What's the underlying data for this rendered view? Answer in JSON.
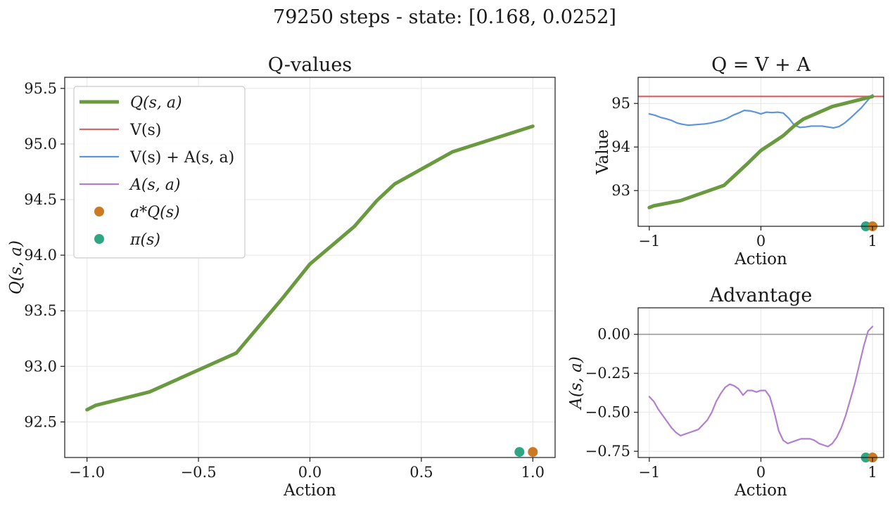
{
  "suptitle": "79250 steps - state: [0.168, 0.0252]",
  "colors": {
    "q": "#6a9a3f",
    "v": "#d06b6b",
    "vpa": "#5b95dd",
    "adv": "#b27fd1",
    "a_star": "#cc7a22",
    "pi": "#2fa683",
    "zero_line": "#9a9a9a"
  },
  "legend": {
    "placement": "upper-left",
    "items": [
      {
        "key": "q",
        "kind": "thick-line",
        "label": "Q(s, a)"
      },
      {
        "key": "v",
        "kind": "line",
        "label": "V(s)"
      },
      {
        "key": "vpa",
        "kind": "line",
        "label": "V(s) + A(s, a)"
      },
      {
        "key": "adv",
        "kind": "line",
        "label": "A(s, a)"
      },
      {
        "key": "a_star",
        "kind": "dot",
        "label": "a*Q(s)"
      },
      {
        "key": "pi",
        "kind": "dot",
        "label": "π(s)"
      }
    ]
  },
  "chart_data": [
    {
      "id": "qvalues",
      "type": "line",
      "title": "Q-values",
      "xlabel": "Action",
      "ylabel": "Q(s, a)",
      "xlim": [
        -1.1,
        1.1
      ],
      "ylim": [
        92.18,
        95.6
      ],
      "xticks": [
        -1.0,
        -0.5,
        0.0,
        0.5,
        1.0
      ],
      "xtick_labels": [
        "−1.0",
        "−0.5",
        "0.0",
        "0.5",
        "1.0"
      ],
      "yticks": [
        92.5,
        93.0,
        93.5,
        94.0,
        94.5,
        95.0,
        95.5
      ],
      "ytick_labels": [
        "92.5",
        "93.0",
        "93.5",
        "94.0",
        "94.5",
        "95.0",
        "95.5"
      ],
      "grid": true,
      "series": [
        {
          "key": "q",
          "x": [
            -1.0,
            -0.96,
            -0.72,
            -0.33,
            -0.12,
            0.0,
            0.13,
            0.2,
            0.3,
            0.38,
            0.64,
            1.0
          ],
          "y": [
            92.61,
            92.65,
            92.77,
            93.12,
            93.62,
            93.92,
            94.14,
            94.26,
            94.49,
            94.64,
            94.93,
            95.16
          ]
        }
      ],
      "markers": [
        {
          "key": "pi",
          "x": 0.94,
          "y": 92.23
        },
        {
          "key": "a_star",
          "x": 1.0,
          "y": 92.23
        }
      ]
    },
    {
      "id": "q_v_a",
      "type": "line",
      "title": "Q = V + A",
      "xlabel": "Action",
      "ylabel": "Value",
      "xlim": [
        -1.1,
        1.1
      ],
      "ylim": [
        92.18,
        95.6
      ],
      "xticks": [
        -1,
        0,
        1
      ],
      "xtick_labels": [
        "−1",
        "0",
        "1"
      ],
      "yticks": [
        93,
        94,
        95
      ],
      "ytick_labels": [
        "93",
        "94",
        "95"
      ],
      "grid": true,
      "hline": {
        "key": "v",
        "y": 95.16
      },
      "series": [
        {
          "key": "vpa",
          "x": [
            -1.0,
            -0.95,
            -0.9,
            -0.85,
            -0.8,
            -0.75,
            -0.7,
            -0.65,
            -0.6,
            -0.55,
            -0.5,
            -0.45,
            -0.4,
            -0.35,
            -0.3,
            -0.25,
            -0.2,
            -0.15,
            -0.1,
            -0.05,
            0.0,
            0.05,
            0.1,
            0.15,
            0.2,
            0.25,
            0.3,
            0.35,
            0.4,
            0.45,
            0.5,
            0.55,
            0.6,
            0.65,
            0.7,
            0.75,
            0.8,
            0.85,
            0.9,
            0.95,
            1.0
          ],
          "y": [
            94.76,
            94.73,
            94.68,
            94.65,
            94.61,
            94.55,
            94.52,
            94.5,
            94.51,
            94.52,
            94.53,
            94.55,
            94.58,
            94.61,
            94.66,
            94.73,
            94.78,
            94.84,
            94.83,
            94.8,
            94.76,
            94.8,
            94.79,
            94.8,
            94.78,
            94.66,
            94.5,
            94.45,
            94.46,
            94.48,
            94.48,
            94.48,
            94.46,
            94.44,
            94.47,
            94.55,
            94.66,
            94.78,
            94.9,
            95.05,
            95.2
          ]
        },
        {
          "key": "q",
          "x": [
            -1.0,
            -0.96,
            -0.72,
            -0.33,
            -0.12,
            0.0,
            0.13,
            0.2,
            0.3,
            0.38,
            0.64,
            1.0
          ],
          "y": [
            92.61,
            92.65,
            92.77,
            93.12,
            93.62,
            93.92,
            94.14,
            94.26,
            94.49,
            94.64,
            94.93,
            95.16
          ]
        }
      ],
      "markers": [
        {
          "key": "pi",
          "x": 0.94,
          "y": 92.18
        },
        {
          "key": "a_star",
          "x": 1.0,
          "y": 92.18
        }
      ]
    },
    {
      "id": "advantage",
      "type": "line",
      "title": "Advantage",
      "xlabel": "Action",
      "ylabel": "A(s, a)",
      "xlim": [
        -1.1,
        1.1
      ],
      "ylim": [
        -0.79,
        0.17
      ],
      "xticks": [
        -1,
        0,
        1
      ],
      "xtick_labels": [
        "−1",
        "0",
        "1"
      ],
      "yticks": [
        0.0,
        -0.25,
        -0.5,
        -0.75
      ],
      "ytick_labels": [
        "0.00",
        "−0.25",
        "−0.50",
        "−0.75"
      ],
      "grid": true,
      "hline": {
        "key": "zero_line",
        "y": 0.0
      },
      "series": [
        {
          "key": "adv",
          "x": [
            -1.0,
            -0.96,
            -0.92,
            -0.88,
            -0.84,
            -0.8,
            -0.76,
            -0.72,
            -0.68,
            -0.64,
            -0.6,
            -0.56,
            -0.52,
            -0.48,
            -0.44,
            -0.4,
            -0.36,
            -0.32,
            -0.28,
            -0.24,
            -0.2,
            -0.16,
            -0.12,
            -0.08,
            -0.04,
            0.0,
            0.04,
            0.08,
            0.12,
            0.16,
            0.2,
            0.24,
            0.28,
            0.32,
            0.36,
            0.4,
            0.44,
            0.48,
            0.52,
            0.56,
            0.6,
            0.64,
            0.68,
            0.72,
            0.76,
            0.8,
            0.84,
            0.88,
            0.92,
            0.96,
            1.0
          ],
          "y": [
            -0.4,
            -0.43,
            -0.48,
            -0.52,
            -0.56,
            -0.6,
            -0.63,
            -0.65,
            -0.64,
            -0.63,
            -0.62,
            -0.61,
            -0.58,
            -0.55,
            -0.5,
            -0.43,
            -0.38,
            -0.34,
            -0.32,
            -0.33,
            -0.35,
            -0.39,
            -0.36,
            -0.36,
            -0.37,
            -0.36,
            -0.36,
            -0.4,
            -0.5,
            -0.62,
            -0.68,
            -0.7,
            -0.69,
            -0.68,
            -0.67,
            -0.67,
            -0.67,
            -0.68,
            -0.7,
            -0.71,
            -0.72,
            -0.7,
            -0.66,
            -0.6,
            -0.52,
            -0.42,
            -0.32,
            -0.2,
            -0.08,
            0.02,
            0.05
          ]
        }
      ],
      "markers": [
        {
          "key": "pi",
          "x": 0.94,
          "y": -0.79
        },
        {
          "key": "a_star",
          "x": 1.0,
          "y": -0.79
        }
      ]
    }
  ]
}
